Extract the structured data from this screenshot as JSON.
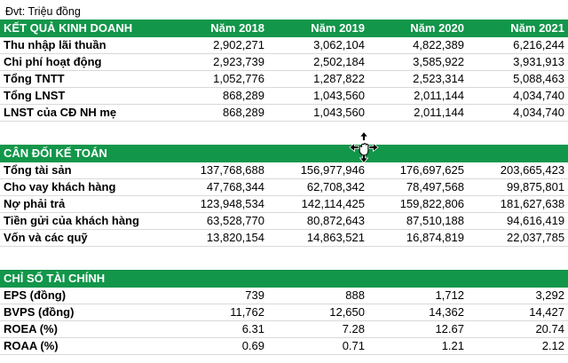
{
  "note": "Đvt: Triệu đồng",
  "colors": {
    "section_header_bg": "#12964A",
    "section_header_text": "#FFFFFF",
    "row_border": "#D9D9D9",
    "body_text": "#000000"
  },
  "columns": [
    "Năm 2018",
    "Năm 2019",
    "Năm 2020",
    "Năm 2021"
  ],
  "cursor": {
    "icon": "move-hand-cursor"
  },
  "sections": [
    {
      "title": "KẾT QUẢ KINH DOANH",
      "show_columns": true,
      "rows": [
        {
          "label": "Thu nhập lãi thuần",
          "values": [
            "2,902,271",
            "3,062,104",
            "4,822,389",
            "6,216,244"
          ]
        },
        {
          "label": "Chi phí hoạt động",
          "values": [
            "2,923,739",
            "2,502,184",
            "3,585,922",
            "3,931,913"
          ]
        },
        {
          "label": "Tổng TNTT",
          "values": [
            "1,052,776",
            "1,287,822",
            "2,523,314",
            "5,088,463"
          ]
        },
        {
          "label": "Tổng LNST",
          "values": [
            "868,289",
            "1,043,560",
            "2,011,144",
            "4,034,740"
          ]
        },
        {
          "label": "LNST của CĐ NH mẹ",
          "values": [
            "868,289",
            "1,043,560",
            "2,011,144",
            "4,034,740"
          ]
        }
      ]
    },
    {
      "title": "CÂN ĐỐI KẾ TOÁN",
      "show_columns": false,
      "rows": [
        {
          "label": "Tổng tài sản",
          "values": [
            "137,768,688",
            "156,977,946",
            "176,697,625",
            "203,665,423"
          ]
        },
        {
          "label": "Cho vay khách hàng",
          "values": [
            "47,768,344",
            "62,708,342",
            "78,497,568",
            "99,875,801"
          ]
        },
        {
          "label": "Nợ phải trả",
          "values": [
            "123,948,534",
            "142,114,425",
            "159,822,806",
            "181,627,638"
          ]
        },
        {
          "label": "Tiền gửi của khách hàng",
          "values": [
            "63,528,770",
            "80,872,643",
            "87,510,188",
            "94,616,419"
          ]
        },
        {
          "label": "Vốn và các quỹ",
          "values": [
            "13,820,154",
            "14,863,521",
            "16,874,819",
            "22,037,785"
          ]
        }
      ]
    },
    {
      "title": "CHỈ SỐ TÀI CHÍNH",
      "show_columns": false,
      "rows": [
        {
          "label": "EPS (đồng)",
          "values": [
            "739",
            "888",
            "1,712",
            "3,292"
          ]
        },
        {
          "label": "BVPS (đồng)",
          "values": [
            "11,762",
            "12,650",
            "14,362",
            "14,427"
          ]
        },
        {
          "label": "ROEA (%)",
          "values": [
            "6.31",
            "7.28",
            "12.67",
            "20.74"
          ]
        },
        {
          "label": "ROAA (%)",
          "values": [
            "0.69",
            "0.71",
            "1.21",
            "2.12"
          ]
        }
      ]
    }
  ]
}
